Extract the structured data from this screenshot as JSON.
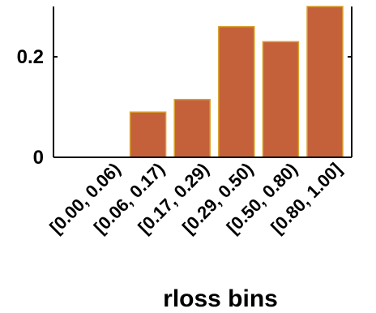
{
  "chart_data": {
    "type": "bar",
    "categories": [
      "[0.00, 0.06)",
      "[0.06, 0.17)",
      "[0.17, 0.29)",
      "[0.29, 0.50)",
      "[0.50, 0.80)",
      "[0.80, 1.00]"
    ],
    "values": [
      0.0,
      0.09,
      0.115,
      0.26,
      0.23,
      0.3
    ],
    "xlabel": "rloss bins",
    "ylabel": "",
    "ylim": [
      0,
      0.3
    ],
    "yticks": [
      0,
      0.2
    ],
    "ytick_labels": [
      "0",
      "0.2"
    ],
    "grid": false,
    "colors": {
      "bar_fill": "#C5613A",
      "bar_edge": "#D9A22E",
      "axis": "#000000"
    }
  }
}
